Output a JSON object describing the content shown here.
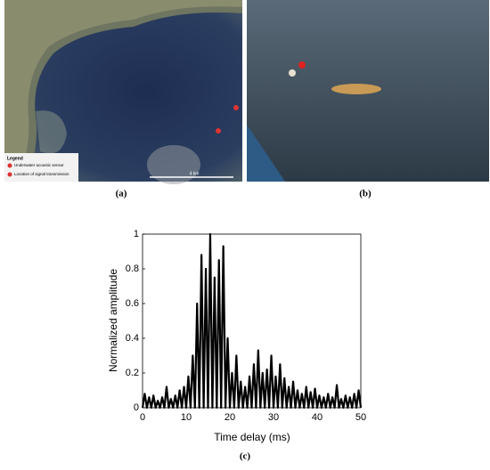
{
  "panels": {
    "a": {
      "label": "(a)",
      "legend_title": "Legend",
      "legend_items": [
        "Underwater acoustic sensor",
        "Location of signal transmission"
      ],
      "scale": "4 km"
    },
    "b": {
      "label": "(b)"
    },
    "c": {
      "label": "(c)"
    }
  },
  "chart_data": {
    "type": "line",
    "x_label": "Time delay (ms)",
    "y_label": "Normalized amplitude",
    "xlim": [
      0,
      50
    ],
    "ylim": [
      0,
      1
    ],
    "xticks": [
      0,
      10,
      20,
      30,
      40,
      50
    ],
    "yticks": [
      0,
      0.2,
      0.4,
      0.6,
      0.8,
      1
    ],
    "x": [
      0,
      0.5,
      1,
      1.5,
      2,
      2.5,
      3,
      3.5,
      4,
      4.5,
      5,
      5.5,
      6,
      6.5,
      7,
      7.5,
      8,
      8.5,
      9,
      9.5,
      10,
      10.5,
      11,
      11.5,
      12,
      12.5,
      13,
      13.5,
      14,
      14.5,
      15,
      15.5,
      16,
      16.5,
      17,
      17.5,
      18,
      18.5,
      19,
      19.5,
      20,
      20.5,
      21,
      21.5,
      22,
      22.5,
      23,
      23.5,
      24,
      24.5,
      25,
      25.5,
      26,
      26.5,
      27,
      27.5,
      28,
      28.5,
      29,
      29.5,
      30,
      30.5,
      31,
      31.5,
      32,
      32.5,
      33,
      33.5,
      34,
      34.5,
      35,
      35.5,
      36,
      36.5,
      37,
      37.5,
      38,
      38.5,
      39,
      39.5,
      40,
      40.5,
      41,
      41.5,
      42,
      42.5,
      43,
      43.5,
      44,
      44.5,
      45,
      45.5,
      46,
      46.5,
      47,
      47.5,
      48,
      48.5,
      49,
      49.5,
      50
    ],
    "series": [
      {
        "color": "#000000",
        "values": [
          0,
          0.08,
          0,
          0.06,
          0,
          0.07,
          0,
          0.04,
          0,
          0.06,
          0,
          0.12,
          0,
          0.05,
          0,
          0.07,
          0,
          0.1,
          0,
          0.12,
          0,
          0.18,
          0,
          0.3,
          0,
          0.6,
          0,
          0.88,
          0,
          0.8,
          0,
          1,
          0,
          0.75,
          0,
          0.85,
          0,
          0.93,
          0,
          0.4,
          0,
          0.2,
          0,
          0.3,
          0,
          0.15,
          0,
          0.12,
          0,
          0.18,
          0,
          0.25,
          0,
          0.33,
          0,
          0.2,
          0,
          0.22,
          0,
          0.3,
          0,
          0.18,
          0,
          0.25,
          0,
          0.17,
          0,
          0.12,
          0,
          0.15,
          0,
          0.1,
          0,
          0.08,
          0,
          0.12,
          0,
          0.09,
          0,
          0.11,
          0,
          0.07,
          0,
          0.06,
          0,
          0.08,
          0,
          0.06,
          0,
          0.13,
          0,
          0.05,
          0,
          0.07,
          0,
          0.06,
          0,
          0.08,
          0,
          0.1,
          0
        ]
      }
    ]
  }
}
